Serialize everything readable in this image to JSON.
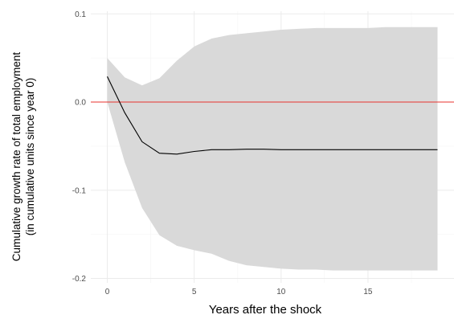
{
  "chart_data": {
    "type": "line",
    "title": "",
    "xlabel": "Years after the shock",
    "ylabel_lines": [
      "Cumulative growth rate of total employment",
      "(in cumulative units since year 0)"
    ],
    "xlim": [
      -0.95,
      19.95
    ],
    "ylim": [
      -0.205,
      0.103
    ],
    "x_ticks": [
      0,
      5,
      10,
      15
    ],
    "x_tick_labels": [
      "0",
      "5",
      "10",
      "15"
    ],
    "y_ticks": [
      -0.2,
      -0.1,
      0.0,
      0.1
    ],
    "y_tick_labels": [
      "-0.2",
      "-0.1",
      "0.0",
      "0.1"
    ],
    "grid": true,
    "reference_line": {
      "y": 0.0,
      "color": "#e8332e"
    },
    "band_color": "#d9d9d9",
    "line_color": "#000000",
    "series": [
      {
        "x": [
          0,
          1,
          2,
          3,
          4,
          5,
          6,
          7,
          8,
          9,
          10,
          11,
          12,
          13,
          14,
          15,
          16,
          17,
          18,
          19
        ],
        "values": [
          0.029,
          -0.012,
          -0.045,
          -0.058,
          -0.059,
          -0.056,
          -0.054,
          -0.054,
          -0.0535,
          -0.0535,
          -0.054,
          -0.054,
          -0.054,
          -0.054,
          -0.054,
          -0.054,
          -0.054,
          -0.054,
          -0.054,
          -0.054
        ],
        "lower": [
          0.0,
          -0.068,
          -0.12,
          -0.151,
          -0.163,
          -0.168,
          -0.172,
          -0.18,
          -0.185,
          -0.187,
          -0.189,
          -0.19,
          -0.19,
          -0.191,
          -0.191,
          -0.191,
          -0.191,
          -0.191,
          -0.191,
          -0.191
        ],
        "upper": [
          0.05,
          0.028,
          0.019,
          0.027,
          0.047,
          0.063,
          0.072,
          0.076,
          0.078,
          0.08,
          0.082,
          0.083,
          0.084,
          0.084,
          0.084,
          0.084,
          0.085,
          0.085,
          0.085,
          0.085
        ]
      }
    ]
  }
}
